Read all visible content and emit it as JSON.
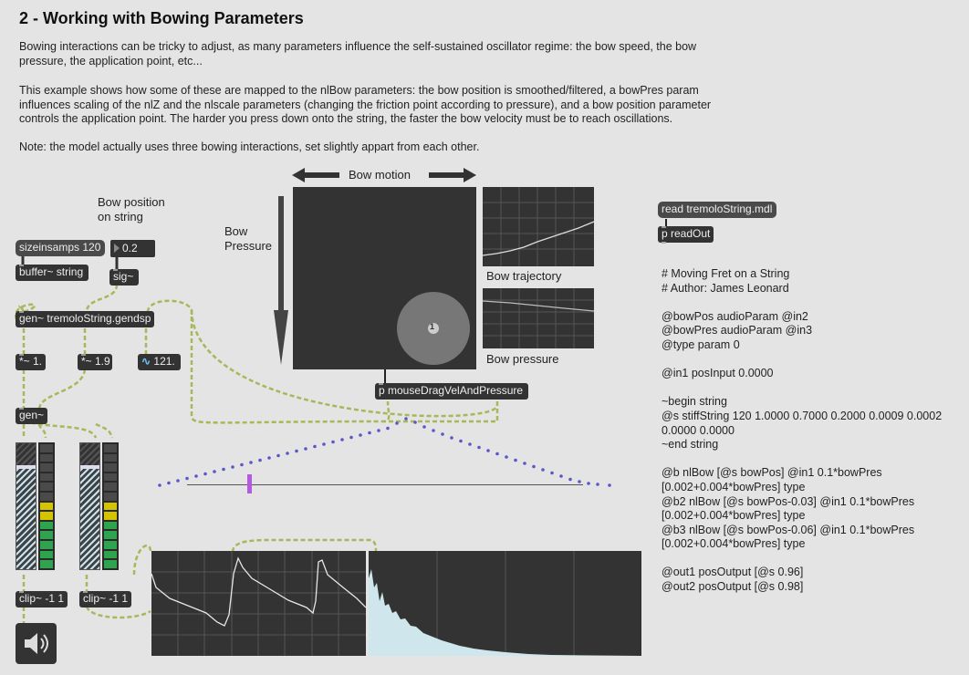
{
  "title": "2 - Working with Bowing Parameters",
  "paragraphs": [
    "Bowing interactions can be tricky to adjust, as many parameters influence the self-sustained oscillator regime: the bow speed, the bow pressure, the application point, etc...",
    "This example shows how some of these are mapped to the nlBow parameters: the bow position is smoothed/filtered, a bowPres param influences scaling of the nlZ and the nlscale parameters (changing the friction point according to pressure), and a bow position parameter controls the application point. The harder you press down onto the string, the faster the bow velocity must be to reach oscillations.",
    "Note: the model actually uses three bowing interactions, set slightly appart from each other."
  ],
  "labels": {
    "bow_position": "Bow position\non string",
    "bow_motion": "Bow motion",
    "bow_pressure_axis": "Bow\nPressure",
    "bow_trajectory": "Bow trajectory",
    "bow_pressure": "Bow pressure"
  },
  "objects": {
    "sizeinsamps": "sizeinsamps 120",
    "number_value": "0.2",
    "buffer": "buffer~ string",
    "sig": "sig~",
    "gen_main": "gen~ tremoloString.gendsp",
    "mul1": "*~ 1.",
    "mul2": "*~ 1.9",
    "num_sig": "121.",
    "gen": "gen~",
    "clip1": "clip~ -1 1",
    "clip2": "clip~ -1 1",
    "read": "read tremoloString.mdl",
    "readout": "p readOut",
    "mousedrag": "p mouseDragVelAndPressure",
    "pad_marker": "1"
  },
  "code_lines": [
    "# Moving Fret on a String",
    "# Author: James Leonard",
    "",
    "@bowPos audioParam @in2",
    "@bowPres audioParam @in3",
    "@type param 0",
    "",
    "@in1 posInput 0.0000",
    "",
    "~begin string",
    "@s stiffString 120 1.0000 0.7000 0.2000 0.0009 0.0002",
    "0.0000 0.0000",
    "~end string",
    "",
    "@b nlBow [@s bowPos] @in1 0.1*bowPres",
    "[0.002+0.004*bowPres] type",
    "@b2 nlBow [@s bowPos-0.03] @in1 0.1*bowPres",
    "[0.002+0.004*bowPres] type",
    "@b3 nlBow [@s bowPos-0.06] @in1 0.1*bowPres",
    "[0.002+0.004*bowPres] type",
    "",
    "@out1 posOutput [@s 0.96]",
    "@out2 posOutput [@s 0.98]"
  ],
  "colors": {
    "background": "#e4e4e4",
    "object": "#333333",
    "patchcord": "#c8d68a",
    "string_dots": "#5a58c8",
    "slider_thumb": "#b45ae0",
    "scope_line": "#e6e6e6",
    "meter_green": "#2ea44f",
    "meter_yellow": "#d4c400"
  },
  "icons": {
    "speaker": "speaker-icon",
    "arrow_left": "arrow-left-icon",
    "arrow_right": "arrow-right-icon",
    "arrow_down": "arrow-down-icon",
    "signal": "tilde-icon"
  }
}
